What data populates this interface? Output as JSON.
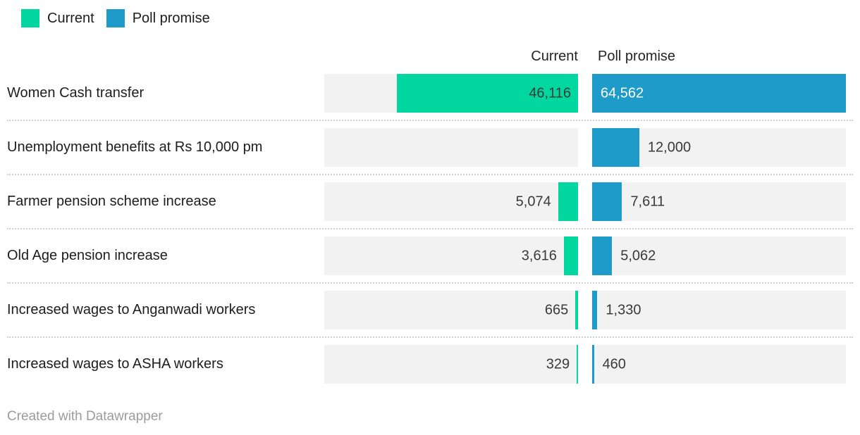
{
  "legend": {
    "items": [
      {
        "label": "Current",
        "color": "#02d7a0"
      },
      {
        "label": "Poll promise",
        "color": "#1e9bc9"
      }
    ]
  },
  "headers": {
    "current": "Current",
    "poll": "Poll promise"
  },
  "footer": {
    "credit": "Created with Datawrapper"
  },
  "colors": {
    "current_bar": "#02d7a0",
    "poll_bar": "#1e9bc9",
    "track": "#f2f2f2",
    "label_text": "#1d1d1d",
    "value_text": "#3a3a3a",
    "value_text_inverse": "#ffffff",
    "separator": "#d0d0d0",
    "footer_text": "#9c9c9c"
  },
  "chart_data": {
    "type": "bar",
    "orientation": "horizontal",
    "grid": false,
    "legend_position": "top-left",
    "max_value": 64562,
    "categories": [
      "Women Cash transfer",
      "Unemployment benefits at Rs 10,000 pm",
      "Farmer pension scheme increase",
      "Old Age pension increase",
      "Increased wages to Anganwadi workers",
      "Increased wages to ASHA workers"
    ],
    "series": [
      {
        "name": "Current",
        "values": [
          46116,
          null,
          5074,
          3616,
          665,
          329
        ],
        "labels": [
          "46,116",
          null,
          "5,074",
          "3,616",
          "665",
          "329"
        ]
      },
      {
        "name": "Poll promise",
        "values": [
          64562,
          12000,
          7611,
          5062,
          1330,
          460
        ],
        "labels": [
          "64,562",
          "12,000",
          "7,611",
          "5,062",
          "1,330",
          "460"
        ]
      }
    ]
  }
}
